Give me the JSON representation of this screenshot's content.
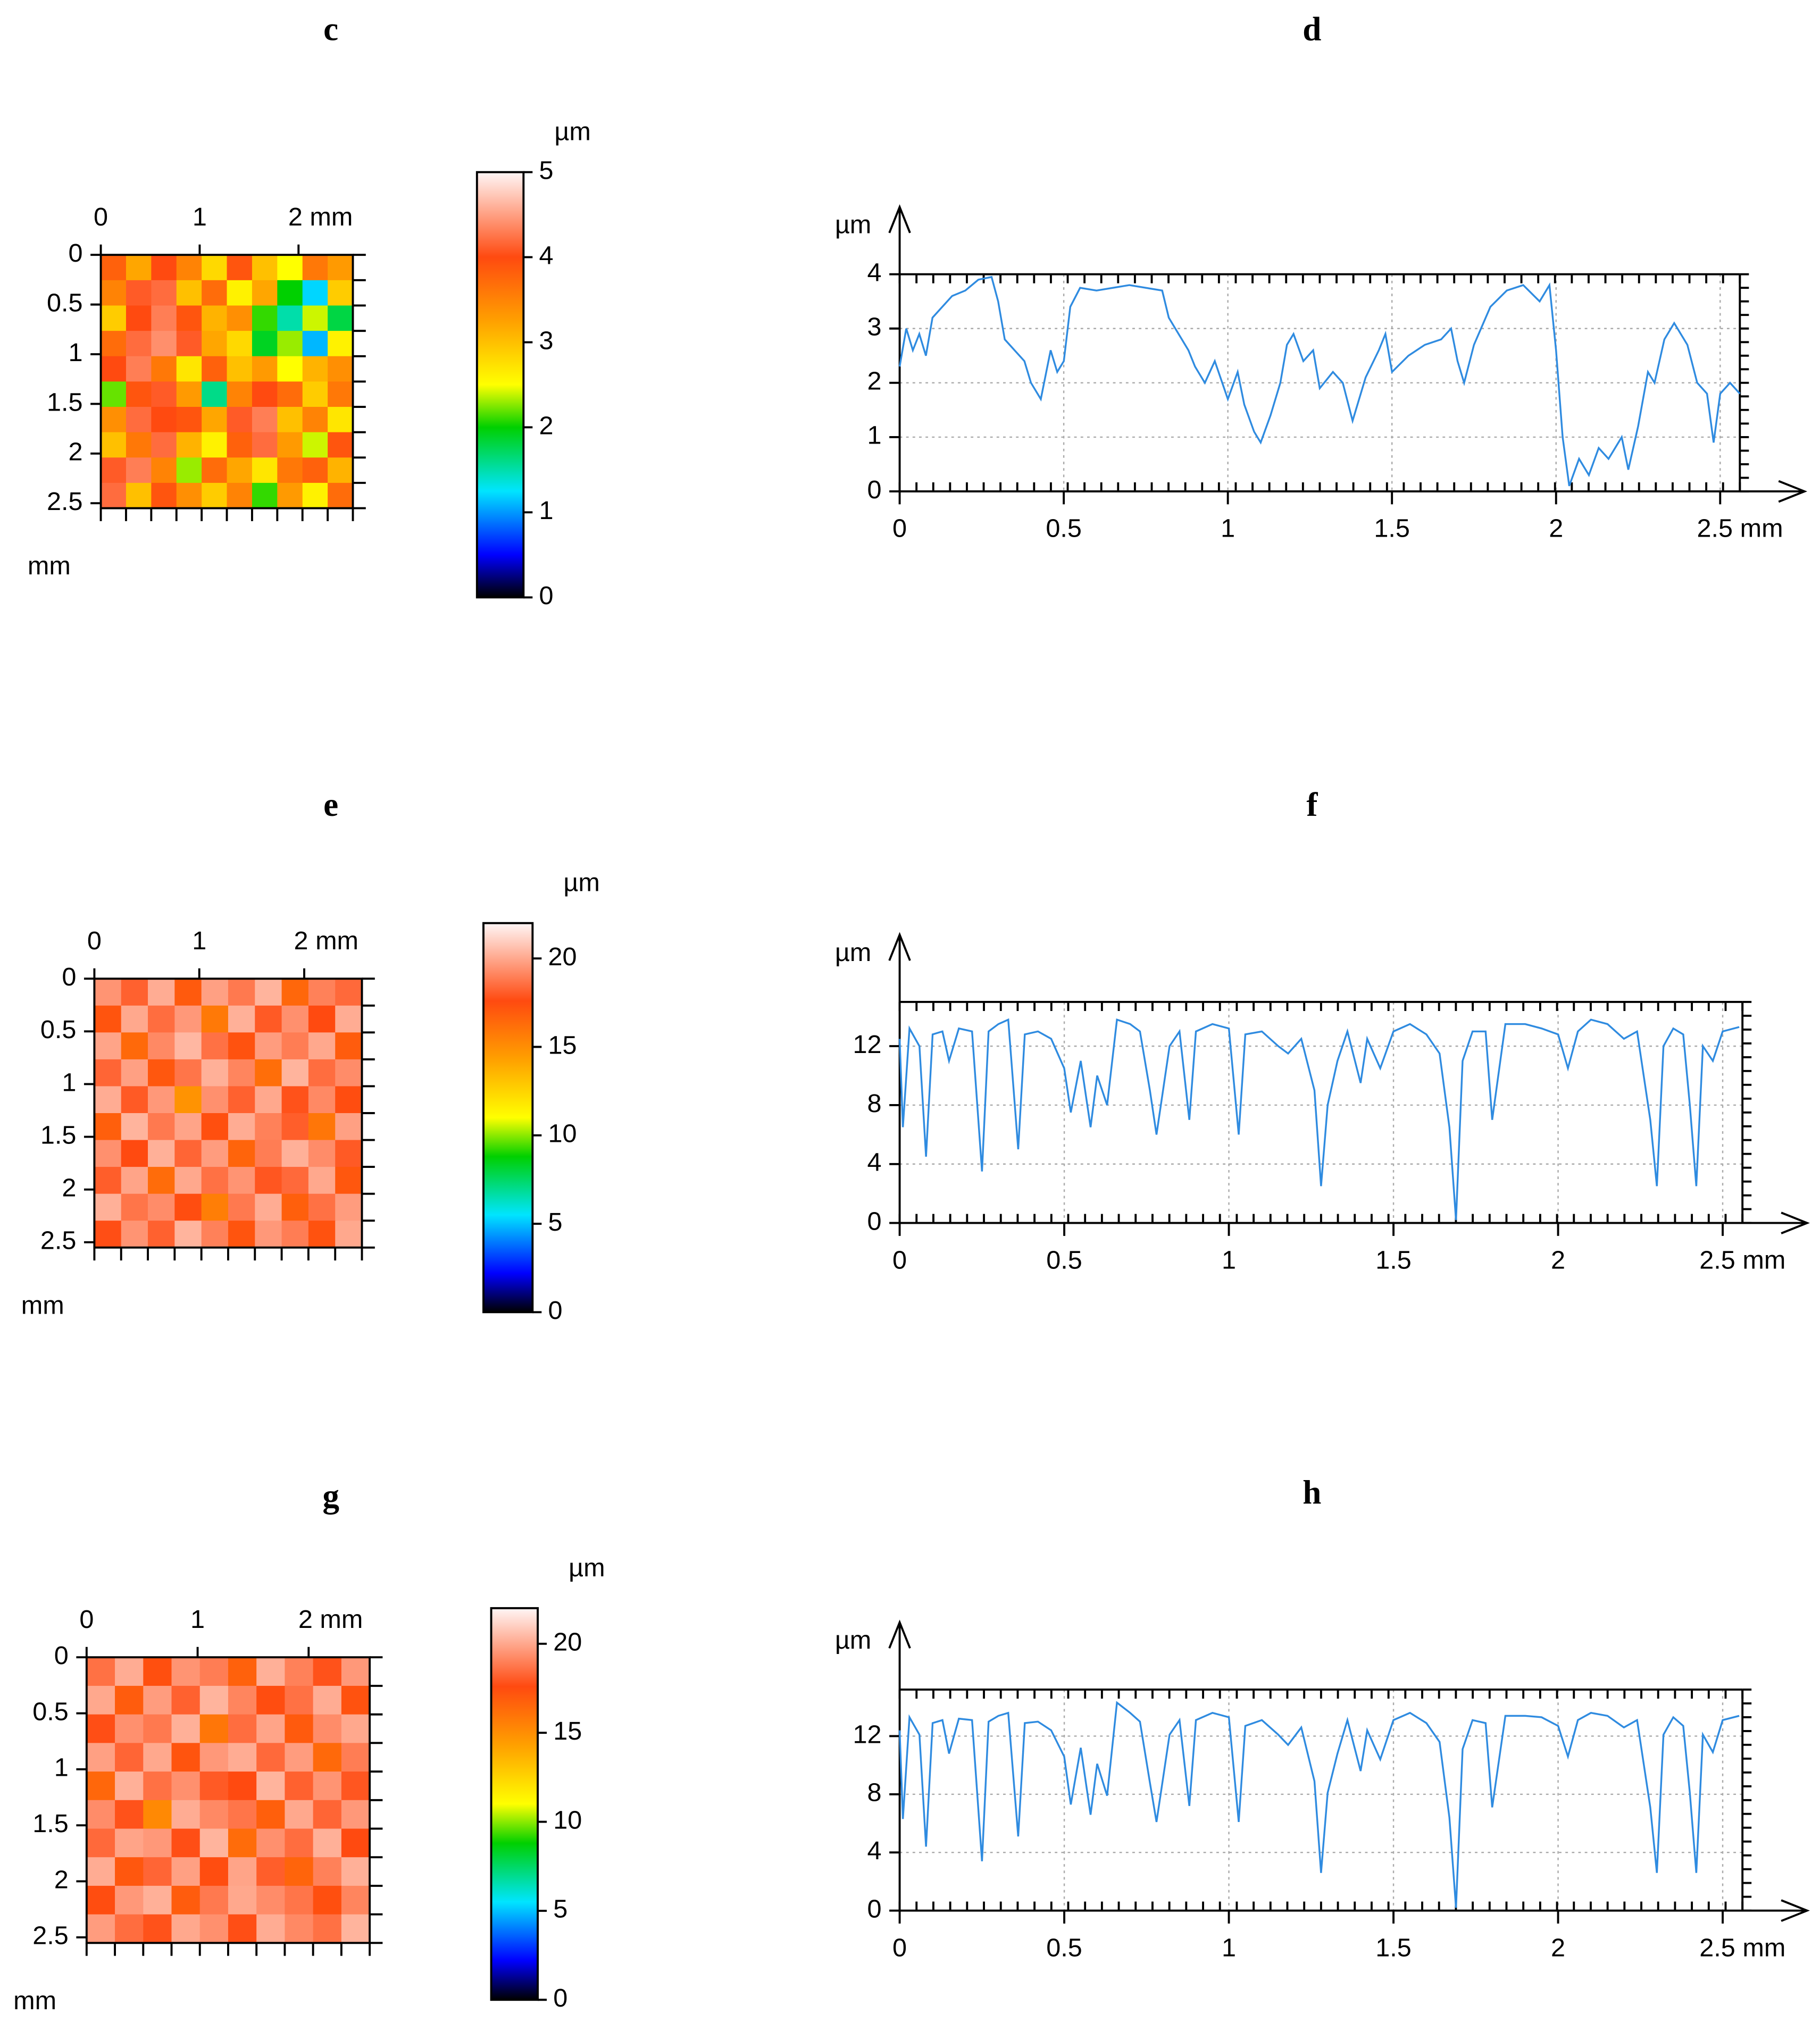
{
  "chart_data": [
    {
      "type": "heatmap",
      "title": "c",
      "xlim": [
        0,
        2.55
      ],
      "ylim": [
        0,
        2.55
      ],
      "xticks": [
        0,
        1,
        {
          "value": 2,
          "label": "2 mm"
        }
      ],
      "yticks": [
        0,
        0.5,
        1,
        1.5,
        2,
        2.5
      ],
      "ylabel": "mm",
      "zlim": [
        0,
        5
      ],
      "zticks": [
        0,
        1,
        2,
        3,
        4,
        5
      ],
      "colorbar_label": "µm",
      "colorscale": [
        [
          0,
          "#000000"
        ],
        [
          0.1,
          "#0000ff"
        ],
        [
          0.25,
          "#00e5ff"
        ],
        [
          0.4,
          "#00d000"
        ],
        [
          0.5,
          "#ffff00"
        ],
        [
          0.65,
          "#ffa000"
        ],
        [
          0.8,
          "#ff4a10"
        ],
        [
          1,
          "#fff6f6"
        ]
      ],
      "z": [
        [
          3.8,
          3.2,
          4.0,
          3.5,
          2.8,
          3.9,
          3.0,
          2.5,
          3.6,
          3.3
        ],
        [
          3.5,
          4.1,
          4.2,
          3.0,
          3.7,
          2.6,
          3.2,
          2.0,
          1.2,
          2.9
        ],
        [
          2.9,
          4.0,
          4.3,
          3.9,
          3.1,
          3.4,
          2.1,
          1.5,
          2.4,
          1.8
        ],
        [
          3.7,
          4.2,
          4.4,
          4.1,
          3.2,
          2.8,
          1.9,
          2.3,
          1.1,
          2.6
        ],
        [
          4.0,
          4.3,
          3.6,
          2.7,
          3.8,
          3.0,
          3.3,
          2.5,
          3.1,
          3.4
        ],
        [
          2.2,
          3.9,
          4.1,
          3.3,
          1.6,
          3.5,
          4.0,
          3.7,
          2.9,
          3.6
        ],
        [
          3.4,
          4.2,
          4.0,
          3.9,
          3.2,
          4.1,
          4.3,
          3.0,
          3.5,
          2.7
        ],
        [
          3.0,
          3.6,
          4.2,
          3.1,
          2.6,
          3.8,
          4.2,
          3.3,
          2.4,
          3.9
        ],
        [
          4.1,
          4.3,
          3.5,
          2.3,
          3.7,
          3.2,
          2.7,
          3.6,
          3.8,
          3.1
        ],
        [
          4.2,
          3.0,
          3.9,
          3.4,
          2.9,
          3.5,
          2.1,
          3.3,
          2.6,
          3.7
        ]
      ]
    },
    {
      "type": "line",
      "title": "d",
      "xlim": [
        0,
        2.56
      ],
      "ylim": [
        0,
        4
      ],
      "xticks": [
        0,
        0.5,
        1,
        1.5,
        2,
        {
          "value": 2.5,
          "label": "2.5 mm"
        }
      ],
      "yticks": [
        0,
        1,
        2,
        3,
        4
      ],
      "ylabel": "µm",
      "grid": true,
      "color": "#2f8be0",
      "x": [
        0,
        0.02,
        0.04,
        0.06,
        0.08,
        0.1,
        0.13,
        0.16,
        0.2,
        0.24,
        0.28,
        0.3,
        0.32,
        0.35,
        0.38,
        0.4,
        0.43,
        0.46,
        0.48,
        0.5,
        0.52,
        0.55,
        0.6,
        0.65,
        0.7,
        0.75,
        0.8,
        0.82,
        0.85,
        0.88,
        0.9,
        0.93,
        0.96,
        1.0,
        1.03,
        1.05,
        1.08,
        1.1,
        1.13,
        1.16,
        1.18,
        1.2,
        1.23,
        1.26,
        1.28,
        1.32,
        1.35,
        1.38,
        1.42,
        1.46,
        1.48,
        1.5,
        1.55,
        1.6,
        1.65,
        1.68,
        1.7,
        1.72,
        1.75,
        1.8,
        1.85,
        1.9,
        1.95,
        1.98,
        2.0,
        2.02,
        2.04,
        2.07,
        2.1,
        2.13,
        2.16,
        2.2,
        2.22,
        2.25,
        2.28,
        2.3,
        2.33,
        2.36,
        2.4,
        2.43,
        2.46,
        2.48,
        2.5,
        2.53,
        2.56
      ],
      "values": [
        2.3,
        3.0,
        2.6,
        2.9,
        2.5,
        3.2,
        3.4,
        3.6,
        3.7,
        3.9,
        3.95,
        3.5,
        2.8,
        2.6,
        2.4,
        2.0,
        1.7,
        2.6,
        2.2,
        2.4,
        3.4,
        3.75,
        3.7,
        3.75,
        3.8,
        3.75,
        3.7,
        3.2,
        2.9,
        2.6,
        2.3,
        2.0,
        2.4,
        1.7,
        2.2,
        1.6,
        1.1,
        0.9,
        1.4,
        2.0,
        2.7,
        2.9,
        2.4,
        2.6,
        1.9,
        2.2,
        2.0,
        1.3,
        2.1,
        2.6,
        2.9,
        2.2,
        2.5,
        2.7,
        2.8,
        3.0,
        2.4,
        2.0,
        2.7,
        3.4,
        3.7,
        3.8,
        3.5,
        3.8,
        2.6,
        1.0,
        0.1,
        0.6,
        0.3,
        0.8,
        0.6,
        1.0,
        0.4,
        1.2,
        2.2,
        2.0,
        2.8,
        3.1,
        2.7,
        2.0,
        1.8,
        0.9,
        1.8,
        2.0,
        1.8
      ]
    },
    {
      "type": "heatmap",
      "title": "e",
      "xlim": [
        0,
        2.55
      ],
      "ylim": [
        0,
        2.55
      ],
      "xticks": [
        0,
        1,
        {
          "value": 2,
          "label": "2 mm"
        }
      ],
      "yticks": [
        0,
        0.5,
        1,
        1.5,
        2,
        2.5
      ],
      "ylabel": "mm",
      "zlim": [
        0,
        22
      ],
      "zticks": [
        0,
        5,
        10,
        15,
        20
      ],
      "colorbar_label": "µm",
      "colorscale": [
        [
          0,
          "#000000"
        ],
        [
          0.1,
          "#0000ff"
        ],
        [
          0.25,
          "#00e5ff"
        ],
        [
          0.4,
          "#00d000"
        ],
        [
          0.5,
          "#ffff00"
        ],
        [
          0.65,
          "#ffa000"
        ],
        [
          0.8,
          "#ff4a10"
        ],
        [
          1,
          "#fff6f6"
        ]
      ],
      "z": [
        [
          19.5,
          18.2,
          20.1,
          17.0,
          19.8,
          18.8,
          20.3,
          16.5,
          19.0,
          18.4
        ],
        [
          17.2,
          20.0,
          18.5,
          19.6,
          15.8,
          20.2,
          18.0,
          19.4,
          17.6,
          20.1
        ],
        [
          19.9,
          16.4,
          19.2,
          20.4,
          18.6,
          17.3,
          19.7,
          18.9,
          20.0,
          16.9
        ],
        [
          18.3,
          19.8,
          17.1,
          18.7,
          20.2,
          19.1,
          16.2,
          20.3,
          18.5,
          19.3
        ],
        [
          20.1,
          18.0,
          19.6,
          14.8,
          19.4,
          18.2,
          20.0,
          17.8,
          19.2,
          17.5
        ],
        [
          16.8,
          20.3,
          18.8,
          19.9,
          17.4,
          20.1,
          19.0,
          18.1,
          15.9,
          19.8
        ],
        [
          19.4,
          17.6,
          20.2,
          18.3,
          19.7,
          16.6,
          18.9,
          20.2,
          19.3,
          18.0
        ],
        [
          18.1,
          19.9,
          16.3,
          20.0,
          18.6,
          19.5,
          17.9,
          18.4,
          20.0,
          17.1
        ],
        [
          20.2,
          18.7,
          19.3,
          17.5,
          15.6,
          18.8,
          20.1,
          16.8,
          18.6,
          19.7
        ],
        [
          17.7,
          19.5,
          18.2,
          20.3,
          19.0,
          17.2,
          19.6,
          18.9,
          17.3,
          20.0
        ]
      ]
    },
    {
      "type": "line",
      "title": "f",
      "xlim": [
        0,
        2.56
      ],
      "ylim": [
        0,
        15
      ],
      "xticks": [
        0,
        0.5,
        1,
        1.5,
        2,
        {
          "value": 2.5,
          "label": "2.5 mm"
        }
      ],
      "yticks": [
        0,
        4,
        8,
        12
      ],
      "ylabel": "µm",
      "grid": true,
      "color": "#2f8be0",
      "x": [
        0,
        0.01,
        0.03,
        0.06,
        0.08,
        0.1,
        0.13,
        0.15,
        0.18,
        0.22,
        0.25,
        0.27,
        0.3,
        0.33,
        0.36,
        0.38,
        0.42,
        0.46,
        0.5,
        0.52,
        0.55,
        0.58,
        0.6,
        0.63,
        0.66,
        0.7,
        0.73,
        0.76,
        0.78,
        0.82,
        0.85,
        0.88,
        0.9,
        0.95,
        1.0,
        1.03,
        1.05,
        1.1,
        1.15,
        1.18,
        1.22,
        1.26,
        1.28,
        1.3,
        1.33,
        1.36,
        1.4,
        1.42,
        1.46,
        1.5,
        1.55,
        1.6,
        1.64,
        1.67,
        1.69,
        1.71,
        1.74,
        1.78,
        1.8,
        1.84,
        1.9,
        1.95,
        2.0,
        2.03,
        2.06,
        2.1,
        2.15,
        2.2,
        2.24,
        2.28,
        2.3,
        2.32,
        2.35,
        2.38,
        2.4,
        2.42,
        2.44,
        2.47,
        2.5,
        2.55
      ],
      "values": [
        12.5,
        6.5,
        13.2,
        12.0,
        4.5,
        12.8,
        13.0,
        11.0,
        13.2,
        13.0,
        3.5,
        13.0,
        13.5,
        13.8,
        5.0,
        12.8,
        13.0,
        12.5,
        10.5,
        7.5,
        11.0,
        6.5,
        10.0,
        8.0,
        13.8,
        13.5,
        13.0,
        9.0,
        6.0,
        12.0,
        13.0,
        7.0,
        13.0,
        13.5,
        13.2,
        6.0,
        12.8,
        13.0,
        12.0,
        11.5,
        12.5,
        9.0,
        2.5,
        8.0,
        11.0,
        13.0,
        9.5,
        12.5,
        10.5,
        13.0,
        13.5,
        12.8,
        11.5,
        6.5,
        0.2,
        11.0,
        13.0,
        13.0,
        7.0,
        13.5,
        13.5,
        13.2,
        12.8,
        10.5,
        13.0,
        13.8,
        13.5,
        12.5,
        13.0,
        7.0,
        2.5,
        12.0,
        13.2,
        12.8,
        8.0,
        2.5,
        12.0,
        11.0,
        13.0,
        13.3
      ]
    },
    {
      "type": "heatmap",
      "title": "g",
      "xlim": [
        0,
        2.55
      ],
      "ylim": [
        0,
        2.55
      ],
      "xticks": [
        0,
        1,
        {
          "value": 2,
          "label": "2 mm"
        }
      ],
      "yticks": [
        0,
        0.5,
        1,
        1.5,
        2,
        2.5
      ],
      "ylabel": "mm",
      "zlim": [
        0,
        22
      ],
      "zticks": [
        0,
        5,
        10,
        15,
        20
      ],
      "colorbar_label": "µm",
      "colorscale": [
        [
          0,
          "#000000"
        ],
        [
          0.1,
          "#0000ff"
        ],
        [
          0.25,
          "#00e5ff"
        ],
        [
          0.4,
          "#00d000"
        ],
        [
          0.5,
          "#ffff00"
        ],
        [
          0.65,
          "#ffa000"
        ],
        [
          0.8,
          "#ff4a10"
        ],
        [
          1,
          "#fff6f6"
        ]
      ],
      "z": [
        [
          18.6,
          20.1,
          17.4,
          19.5,
          18.9,
          16.7,
          20.2,
          19.0,
          17.8,
          19.6
        ],
        [
          20.0,
          16.9,
          19.7,
          18.2,
          20.3,
          19.1,
          17.5,
          18.6,
          20.1,
          17.3
        ],
        [
          17.7,
          19.4,
          18.8,
          20.2,
          15.9,
          18.5,
          19.9,
          17.0,
          19.3,
          20.0
        ],
        [
          19.8,
          18.3,
          20.0,
          17.2,
          19.6,
          20.1,
          18.4,
          19.7,
          16.4,
          18.9
        ],
        [
          16.5,
          20.2,
          18.6,
          19.4,
          18.0,
          17.6,
          20.3,
          18.2,
          19.5,
          17.9
        ],
        [
          19.3,
          17.8,
          15.2,
          20.1,
          19.2,
          18.7,
          16.8,
          20.0,
          18.3,
          19.6
        ],
        [
          18.4,
          19.9,
          19.6,
          17.7,
          20.3,
          16.3,
          19.4,
          18.5,
          20.2,
          17.6
        ],
        [
          20.1,
          17.1,
          18.3,
          19.8,
          17.5,
          19.9,
          18.1,
          16.6,
          19.0,
          20.2
        ],
        [
          17.5,
          19.6,
          20.2,
          16.9,
          18.8,
          20.0,
          19.3,
          18.7,
          17.4,
          19.1
        ],
        [
          19.7,
          18.5,
          17.8,
          20.0,
          19.4,
          17.7,
          20.1,
          19.2,
          18.6,
          20.3
        ]
      ]
    },
    {
      "type": "line",
      "title": "h",
      "xlim": [
        0,
        2.56
      ],
      "ylim": [
        0,
        15.2
      ],
      "xticks": [
        0,
        0.5,
        1,
        1.5,
        2,
        {
          "value": 2.5,
          "label": "2.5 mm"
        }
      ],
      "yticks": [
        0,
        4,
        8,
        12
      ],
      "ylabel": "µm",
      "grid": true,
      "color": "#2f8be0",
      "x": [
        0,
        0.01,
        0.03,
        0.06,
        0.08,
        0.1,
        0.13,
        0.15,
        0.18,
        0.22,
        0.25,
        0.27,
        0.3,
        0.33,
        0.36,
        0.38,
        0.42,
        0.46,
        0.5,
        0.52,
        0.55,
        0.58,
        0.6,
        0.63,
        0.66,
        0.7,
        0.73,
        0.76,
        0.78,
        0.82,
        0.85,
        0.88,
        0.9,
        0.95,
        1.0,
        1.03,
        1.05,
        1.1,
        1.15,
        1.18,
        1.22,
        1.26,
        1.28,
        1.3,
        1.33,
        1.36,
        1.4,
        1.42,
        1.46,
        1.5,
        1.55,
        1.6,
        1.64,
        1.67,
        1.69,
        1.71,
        1.74,
        1.78,
        1.8,
        1.84,
        1.9,
        1.95,
        2.0,
        2.03,
        2.06,
        2.1,
        2.15,
        2.2,
        2.24,
        2.28,
        2.3,
        2.32,
        2.35,
        2.38,
        2.4,
        2.42,
        2.44,
        2.47,
        2.5,
        2.55
      ],
      "values": [
        12.4,
        6.3,
        13.3,
        12.1,
        4.4,
        12.9,
        13.1,
        10.8,
        13.2,
        13.1,
        3.4,
        13.0,
        13.4,
        13.6,
        5.1,
        12.9,
        13.0,
        12.4,
        10.6,
        7.3,
        11.2,
        6.6,
        10.1,
        7.9,
        14.3,
        13.6,
        13.0,
        8.8,
        6.1,
        12.1,
        13.1,
        7.2,
        13.1,
        13.6,
        13.3,
        6.1,
        12.7,
        13.1,
        12.1,
        11.4,
        12.6,
        8.9,
        2.6,
        8.1,
        10.8,
        13.1,
        9.6,
        12.4,
        10.4,
        13.1,
        13.6,
        12.9,
        11.6,
        6.4,
        0.2,
        11.1,
        13.1,
        12.9,
        7.1,
        13.4,
        13.4,
        13.3,
        12.7,
        10.6,
        13.1,
        13.6,
        13.4,
        12.6,
        13.1,
        7.1,
        2.6,
        12.1,
        13.3,
        12.7,
        8.1,
        2.6,
        12.1,
        10.9,
        13.1,
        13.4
      ]
    }
  ]
}
